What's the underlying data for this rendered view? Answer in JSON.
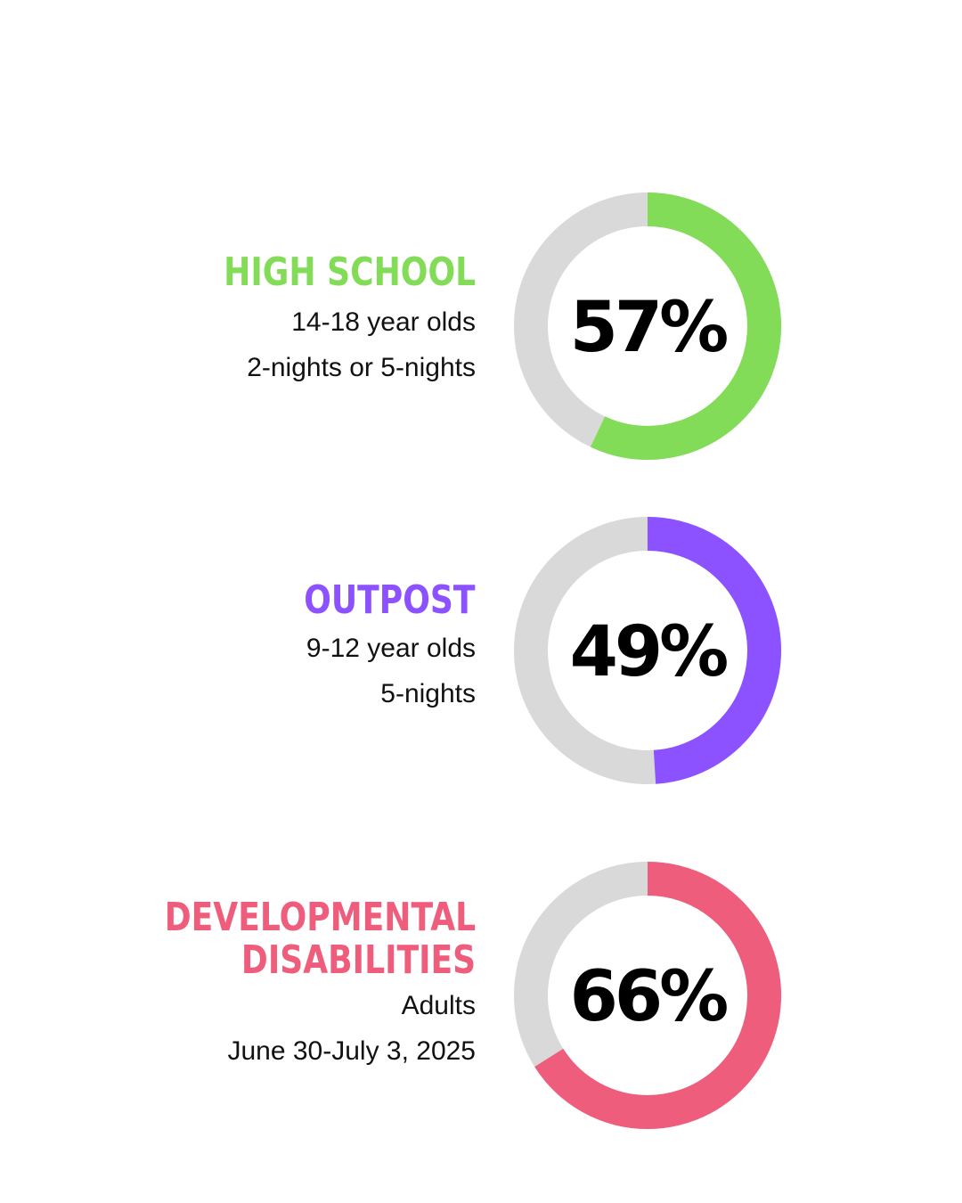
{
  "chart_data": [
    {
      "type": "pie",
      "title": "HIGH SCHOOL",
      "value": 57,
      "value_label": "57%",
      "details": [
        "14-18 year olds",
        "2-nights or 5-nights"
      ],
      "color": "#82dc57",
      "track_color": "#d9d9d9"
    },
    {
      "type": "pie",
      "title": "OUTPOST",
      "value": 49,
      "value_label": "49%",
      "details": [
        "9-12 year olds",
        "5-nights"
      ],
      "color": "#8c52ff",
      "track_color": "#d9d9d9"
    },
    {
      "type": "pie",
      "title_lines": [
        "DEVELOPMENTAL",
        "DISABILITIES"
      ],
      "value": 66,
      "value_label": "66%",
      "details": [
        "Adults",
        "June 30-July 3, 2025"
      ],
      "color": "#ef5d7c",
      "track_color": "#d9d9d9"
    }
  ]
}
